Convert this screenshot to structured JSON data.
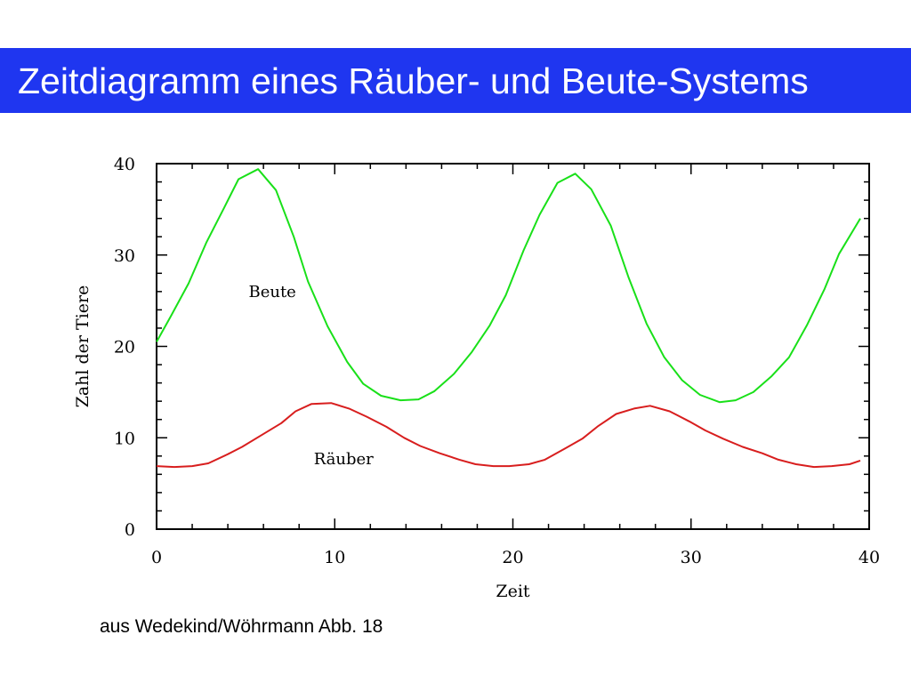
{
  "slide": {
    "title": "Zeitdiagramm eines Räuber- und Beute-Systems",
    "source": "aus Wedekind/Wöhrmann Abb. 18",
    "title_bar_color": "#1f36f0"
  },
  "chart_data": {
    "type": "line",
    "title": "",
    "xlabel": "Zeit",
    "ylabel": "Zahl der Tiere",
    "xlim": [
      0,
      40
    ],
    "ylim": [
      0,
      40
    ],
    "xticks": [
      0,
      10,
      20,
      30,
      40
    ],
    "yticks": [
      0,
      10,
      20,
      30,
      40
    ],
    "x_tick_labels": [
      "0",
      "10",
      "20",
      "30",
      "40"
    ],
    "y_tick_labels": [
      "0",
      "10",
      "20",
      "30",
      "40"
    ],
    "grid": false,
    "legend": "inline labels near curves",
    "series": [
      {
        "name": "Beute",
        "color": "#19e019",
        "x": [
          0,
          0.8,
          1.8,
          2.8,
          3.8,
          4.6,
          5.7,
          6.7,
          7.7,
          8.5,
          9.6,
          10.7,
          11.6,
          12.6,
          13.7,
          14.7,
          15.6,
          16.7,
          17.7,
          18.7,
          19.6,
          20.6,
          21.5,
          22.5,
          23.5,
          24.4,
          25.5,
          26.5,
          27.5,
          28.5,
          29.5,
          30.5,
          31.6,
          32.5,
          33.5,
          34.5,
          35.5,
          36.5,
          37.5,
          38.3,
          39.5
        ],
        "y": [
          20.5,
          23.3,
          26.9,
          31.4,
          35.2,
          38.3,
          39.4,
          37.1,
          32.0,
          27.1,
          22.2,
          18.3,
          15.9,
          14.6,
          14.1,
          14.2,
          15.1,
          17.0,
          19.4,
          22.3,
          25.6,
          30.5,
          34.4,
          37.9,
          38.9,
          37.2,
          33.2,
          27.5,
          22.5,
          18.8,
          16.3,
          14.7,
          13.9,
          14.1,
          15.0,
          16.7,
          18.8,
          22.3,
          26.3,
          30.1,
          34.0
        ]
      },
      {
        "name": "Räuber",
        "color": "#d81e1e",
        "x": [
          0,
          1,
          2,
          2.9,
          4,
          4.8,
          5.9,
          7,
          7.8,
          8.7,
          9.8,
          10.8,
          11.8,
          12.9,
          13.9,
          14.8,
          15.9,
          17,
          17.9,
          18.9,
          19.8,
          20.9,
          21.8,
          22.9,
          23.9,
          24.8,
          25.8,
          26.8,
          27.7,
          28.8,
          29.9,
          30.8,
          31.8,
          32.9,
          34,
          34.9,
          35.9,
          36.9,
          37.9,
          38.9,
          39.5
        ],
        "y": [
          6.9,
          6.8,
          6.9,
          7.2,
          8.2,
          9.0,
          10.3,
          11.6,
          12.9,
          13.7,
          13.8,
          13.2,
          12.3,
          11.2,
          10.0,
          9.1,
          8.3,
          7.6,
          7.1,
          6.9,
          6.9,
          7.1,
          7.6,
          8.8,
          9.9,
          11.3,
          12.6,
          13.2,
          13.5,
          12.9,
          11.8,
          10.8,
          9.9,
          9.0,
          8.3,
          7.6,
          7.1,
          6.8,
          6.9,
          7.1,
          7.5
        ]
      }
    ],
    "annotations": [
      {
        "text": "Beute",
        "x": 6.5,
        "y": 25.4
      },
      {
        "text": "Räuber",
        "x": 10.5,
        "y": 7.1
      }
    ]
  }
}
